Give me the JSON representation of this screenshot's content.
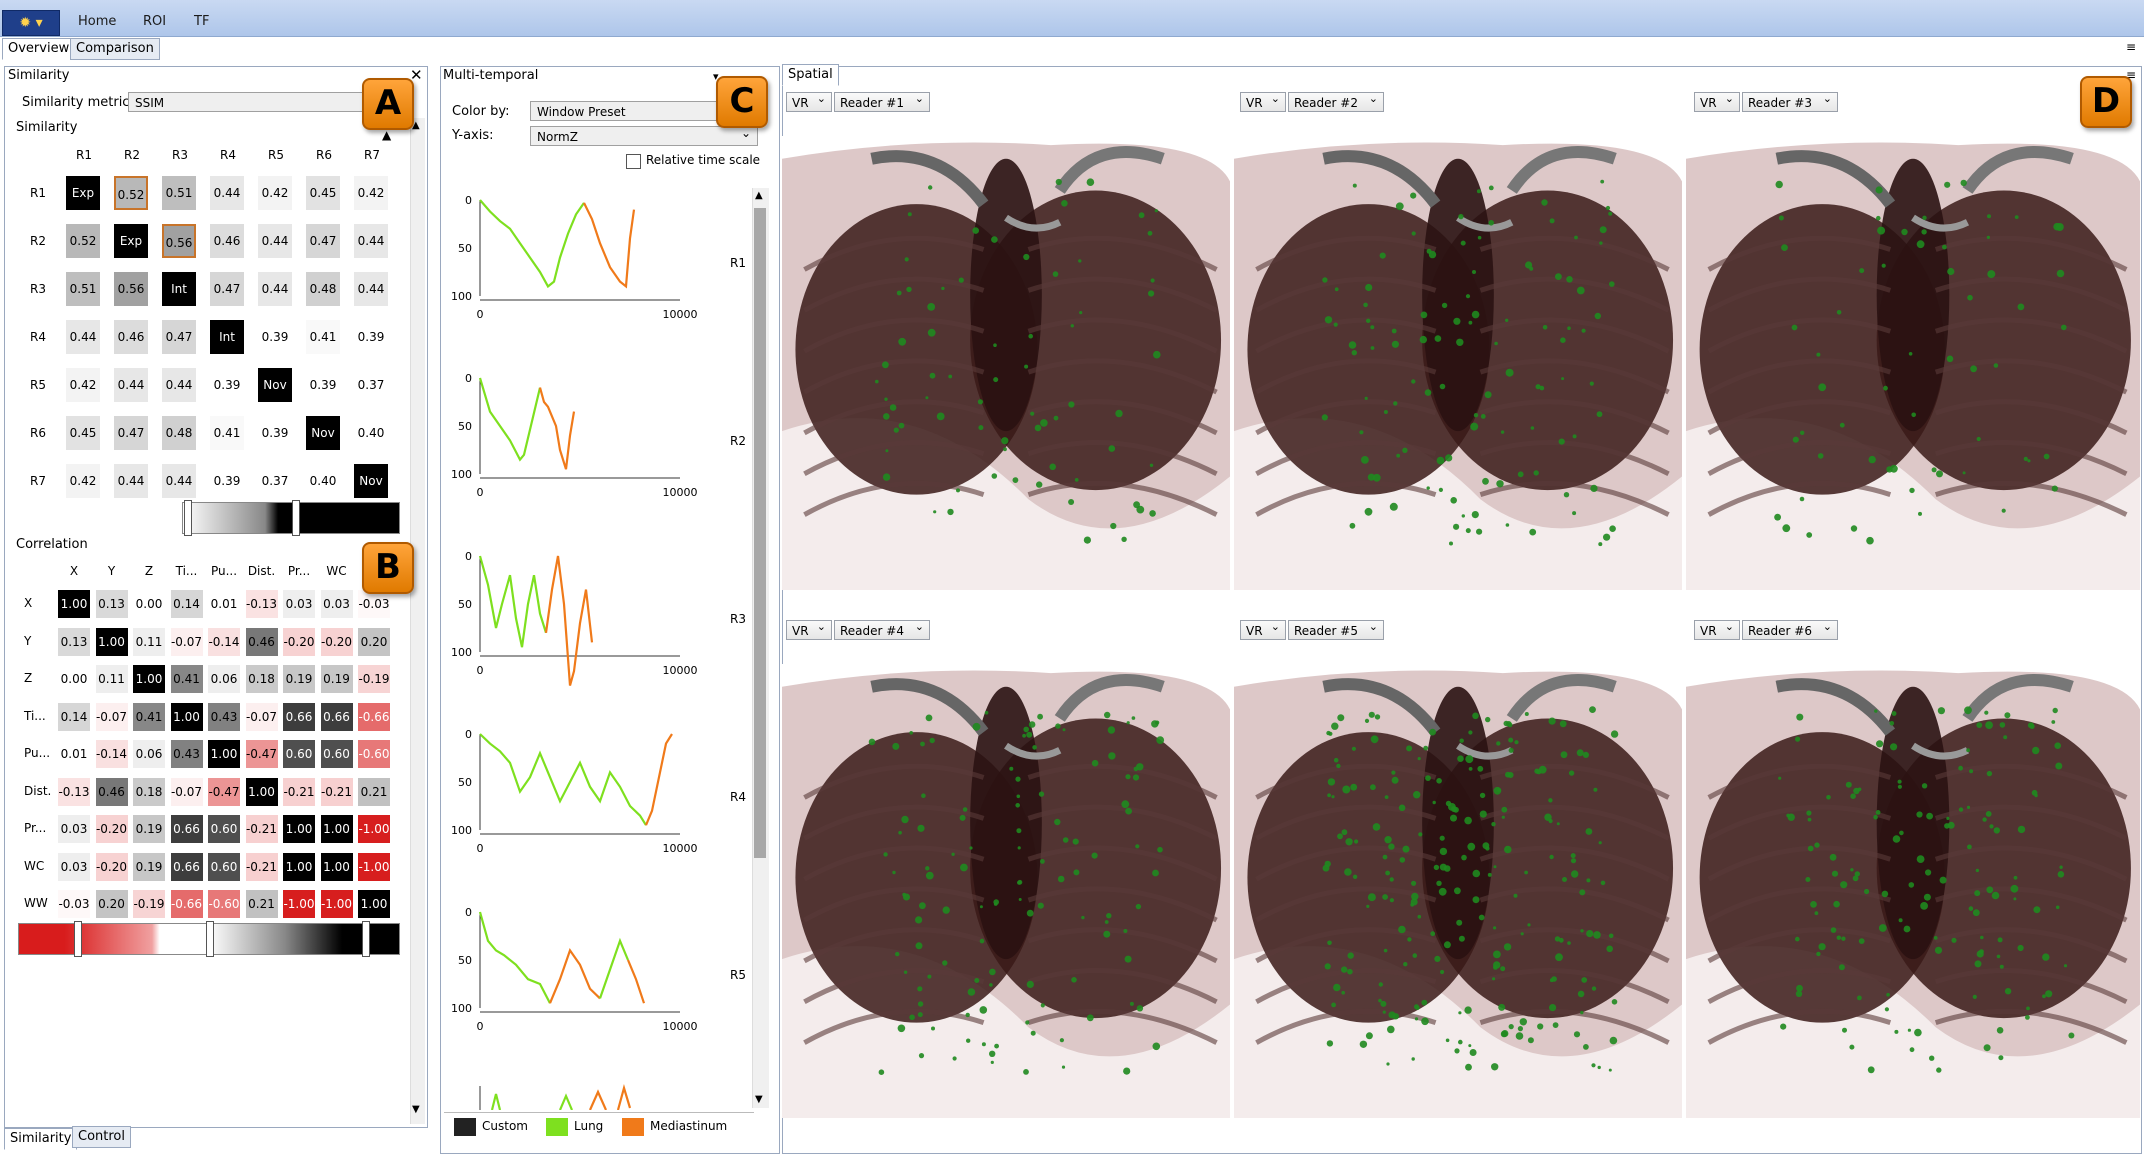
{
  "ribbon": {
    "tabs": [
      "Home",
      "ROI",
      "TF"
    ],
    "app_icon": "sun-icon"
  },
  "view_tabs": [
    "Overview",
    "Comparison"
  ],
  "bottom_tabs": [
    "Similarity",
    "Control"
  ],
  "badges": {
    "a": "A",
    "b": "B",
    "c": "C",
    "d": "D"
  },
  "similarity": {
    "title": "Similarity",
    "metric_label": "Similarity metric",
    "metric_value": "SSIM",
    "section_label": "Similarity",
    "headers": [
      "R1",
      "R2",
      "R3",
      "R4",
      "R5",
      "R6",
      "R7"
    ],
    "rows": [
      [
        "Exp",
        "0.52",
        "0.51",
        "0.44",
        "0.42",
        "0.45",
        "0.42"
      ],
      [
        "0.52",
        "Exp",
        "0.56",
        "0.46",
        "0.44",
        "0.47",
        "0.44"
      ],
      [
        "0.51",
        "0.56",
        "Int",
        "0.47",
        "0.44",
        "0.48",
        "0.44"
      ],
      [
        "0.44",
        "0.46",
        "0.47",
        "Int",
        "0.39",
        "0.41",
        "0.39"
      ],
      [
        "0.42",
        "0.44",
        "0.44",
        "0.39",
        "Nov",
        "0.39",
        "0.37"
      ],
      [
        "0.45",
        "0.47",
        "0.48",
        "0.41",
        "0.39",
        "Nov",
        "0.40"
      ],
      [
        "0.42",
        "0.44",
        "0.44",
        "0.39",
        "0.37",
        "0.40",
        "Nov"
      ]
    ],
    "colors": {
      "diag": "#000000",
      "highlight_border": "#c8742a"
    }
  },
  "correlation": {
    "title": "Correlation",
    "headers": [
      "X",
      "Y",
      "Z",
      "Ti...",
      "Pu...",
      "Dist.",
      "Pr...",
      "WC",
      "WW"
    ],
    "rows": [
      [
        "1.00",
        "0.13",
        "0.00",
        "0.14",
        "0.01",
        "-0.13",
        "0.03",
        "0.03",
        "-0.03"
      ],
      [
        "0.13",
        "1.00",
        "0.11",
        "-0.07",
        "-0.14",
        "0.46",
        "-0.20",
        "-0.20",
        "0.20"
      ],
      [
        "0.00",
        "0.11",
        "1.00",
        "0.41",
        "0.06",
        "0.18",
        "0.19",
        "0.19",
        "-0.19"
      ],
      [
        "0.14",
        "-0.07",
        "0.41",
        "1.00",
        "0.43",
        "-0.07",
        "0.66",
        "0.66",
        "-0.66"
      ],
      [
        "0.01",
        "-0.14",
        "0.06",
        "0.43",
        "1.00",
        "-0.47",
        "0.60",
        "0.60",
        "-0.60"
      ],
      [
        "-0.13",
        "0.46",
        "0.18",
        "-0.07",
        "-0.47",
        "1.00",
        "-0.21",
        "-0.21",
        "0.21"
      ],
      [
        "0.03",
        "-0.20",
        "0.19",
        "0.66",
        "0.60",
        "-0.21",
        "1.00",
        "1.00",
        "-1.00"
      ],
      [
        "0.03",
        "-0.20",
        "0.19",
        "0.66",
        "0.60",
        "-0.21",
        "1.00",
        "1.00",
        "-1.00"
      ],
      [
        "-0.03",
        "0.20",
        "-0.19",
        "-0.66",
        "-0.60",
        "0.21",
        "-1.00",
        "-1.00",
        "1.00"
      ]
    ],
    "row_labels": [
      "X",
      "Y",
      "Z",
      "Ti...",
      "Pu...",
      "Dist.",
      "Pr...",
      "WC",
      "WW"
    ]
  },
  "multitemporal": {
    "title": "Multi-temporal",
    "color_by_label": "Color by:",
    "color_by_value": "Window Preset",
    "yaxis_label": "Y-axis:",
    "yaxis_value": "NormZ",
    "relative_label": "Relative time scale",
    "relative_checked": false,
    "legend": [
      {
        "name": "Custom",
        "color": "#222222"
      },
      {
        "name": "Lung",
        "color": "#7ee01f"
      },
      {
        "name": "Mediastinum",
        "color": "#f07a1a"
      }
    ]
  },
  "chart_data": {
    "type": "line",
    "xlim": [
      0,
      10000
    ],
    "ylim": [
      0,
      100
    ],
    "x_ticks": [
      "0",
      "10000"
    ],
    "y_ticks": [
      "0",
      "50",
      "100"
    ],
    "series": [
      {
        "name": "R1",
        "segments": [
          {
            "preset": "Lung",
            "points": [
              [
                0,
                0
              ],
              [
                500,
                12
              ],
              [
                1000,
                22
              ],
              [
                1500,
                30
              ],
              [
                2000,
                45
              ],
              [
                2500,
                60
              ],
              [
                3000,
                75
              ],
              [
                3400,
                90
              ],
              [
                3700,
                85
              ],
              [
                4000,
                60
              ],
              [
                4400,
                35
              ],
              [
                4800,
                15
              ],
              [
                5200,
                3
              ]
            ]
          },
          {
            "preset": "Mediastinum",
            "points": [
              [
                5200,
                3
              ],
              [
                5600,
                20
              ],
              [
                6000,
                45
              ],
              [
                6500,
                70
              ],
              [
                7000,
                85
              ],
              [
                7300,
                90
              ],
              [
                7500,
                40
              ],
              [
                7700,
                10
              ]
            ]
          }
        ]
      },
      {
        "name": "R2",
        "segments": [
          {
            "preset": "Lung",
            "points": [
              [
                0,
                0
              ],
              [
                500,
                35
              ],
              [
                1000,
                50
              ],
              [
                1500,
                65
              ],
              [
                2000,
                85
              ],
              [
                2200,
                80
              ],
              [
                2600,
                45
              ],
              [
                3000,
                10
              ]
            ]
          },
          {
            "preset": "Mediastinum",
            "points": [
              [
                3000,
                10
              ],
              [
                3200,
                25
              ],
              [
                3400,
                30
              ],
              [
                3800,
                50
              ],
              [
                4000,
                75
              ],
              [
                4300,
                95
              ],
              [
                4500,
                60
              ],
              [
                4700,
                35
              ]
            ]
          }
        ]
      },
      {
        "name": "R3",
        "segments": [
          {
            "preset": "Lung",
            "points": [
              [
                0,
                0
              ],
              [
                400,
                30
              ],
              [
                800,
                75
              ],
              [
                1100,
                50
              ],
              [
                1500,
                20
              ],
              [
                1800,
                65
              ],
              [
                2100,
                95
              ],
              [
                2400,
                50
              ],
              [
                2700,
                20
              ],
              [
                3000,
                60
              ],
              [
                3300,
                80
              ]
            ]
          },
          {
            "preset": "Mediastinum",
            "points": [
              [
                3300,
                80
              ],
              [
                3600,
                35
              ],
              [
                3900,
                0
              ],
              [
                4200,
                50
              ],
              [
                4500,
                135
              ],
              [
                4700,
                120
              ],
              [
                5000,
                70
              ],
              [
                5300,
                35
              ],
              [
                5600,
                90
              ]
            ]
          }
        ]
      },
      {
        "name": "R4",
        "segments": [
          {
            "preset": "Lung",
            "points": [
              [
                0,
                0
              ],
              [
                500,
                10
              ],
              [
                1000,
                18
              ],
              [
                1500,
                30
              ],
              [
                2000,
                60
              ],
              [
                2500,
                45
              ],
              [
                3000,
                20
              ],
              [
                3500,
                45
              ],
              [
                4000,
                70
              ],
              [
                4500,
                50
              ],
              [
                5000,
                30
              ],
              [
                5500,
                55
              ],
              [
                6000,
                70
              ],
              [
                6500,
                40
              ],
              [
                7000,
                55
              ],
              [
                7500,
                75
              ],
              [
                8000,
                85
              ],
              [
                8300,
                95
              ]
            ]
          },
          {
            "preset": "Mediastinum",
            "points": [
              [
                8300,
                95
              ],
              [
                8600,
                80
              ],
              [
                9000,
                40
              ],
              [
                9300,
                10
              ],
              [
                9600,
                0
              ]
            ]
          }
        ]
      },
      {
        "name": "R5",
        "segments": [
          {
            "preset": "Lung",
            "points": [
              [
                0,
                0
              ],
              [
                400,
                30
              ],
              [
                800,
                40
              ],
              [
                1200,
                45
              ],
              [
                1800,
                55
              ],
              [
                2400,
                70
              ],
              [
                3000,
                75
              ],
              [
                3500,
                95
              ]
            ]
          },
          {
            "preset": "Mediastinum",
            "points": [
              [
                3500,
                95
              ],
              [
                4000,
                70
              ],
              [
                4500,
                40
              ],
              [
                5000,
                55
              ],
              [
                5500,
                80
              ],
              [
                6000,
                90
              ]
            ]
          },
          {
            "preset": "Lung",
            "points": [
              [
                6000,
                90
              ],
              [
                6500,
                60
              ],
              [
                7000,
                30
              ],
              [
                7400,
                50
              ]
            ]
          },
          {
            "preset": "Mediastinum",
            "points": [
              [
                7400,
                50
              ],
              [
                7800,
                70
              ],
              [
                8200,
                95
              ]
            ]
          }
        ]
      }
    ]
  },
  "spatial": {
    "title": "Spatial",
    "views": [
      {
        "mode": "VR",
        "reader": "Reader #1"
      },
      {
        "mode": "VR",
        "reader": "Reader #2"
      },
      {
        "mode": "VR",
        "reader": "Reader #3"
      },
      {
        "mode": "VR",
        "reader": "Reader #4"
      },
      {
        "mode": "VR",
        "reader": "Reader #5"
      },
      {
        "mode": "VR",
        "reader": "Reader #6"
      }
    ]
  }
}
